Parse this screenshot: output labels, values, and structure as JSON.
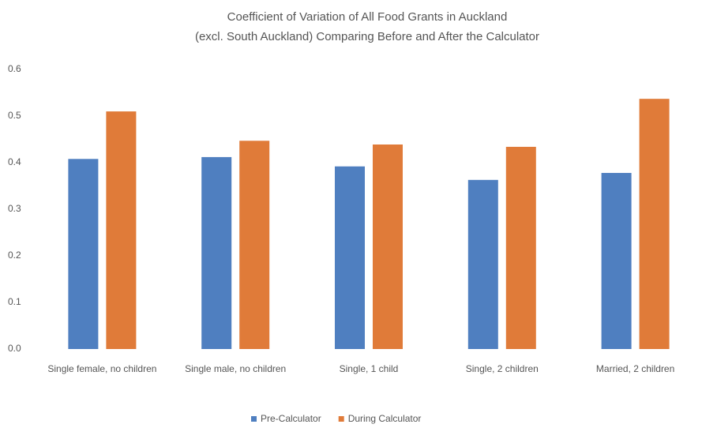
{
  "chart_data": {
    "type": "bar",
    "title": [
      "Coefficient of Variation of All Food Grants in Auckland",
      "(excl. South Auckland) Comparing Before and After the Calculator"
    ],
    "categories": [
      "Single female, no children",
      "Single male, no children",
      "Single, 1 child",
      "Single, 2 children",
      "Married, 2 children"
    ],
    "series": [
      {
        "name": "Pre-Calculator",
        "color": "#4f7fc0",
        "values": [
          0.408,
          0.412,
          0.392,
          0.363,
          0.378
        ]
      },
      {
        "name": "During Calculator",
        "color": "#e07b39",
        "values": [
          0.51,
          0.447,
          0.439,
          0.434,
          0.537
        ]
      }
    ],
    "ylim": [
      0,
      0.6
    ],
    "yticks": [
      {
        "value": 0,
        "label": "0.0"
      },
      0.1,
      0.2,
      0.3,
      0.4,
      0.5,
      0.6
    ],
    "grid": false,
    "legend": "bottom"
  }
}
